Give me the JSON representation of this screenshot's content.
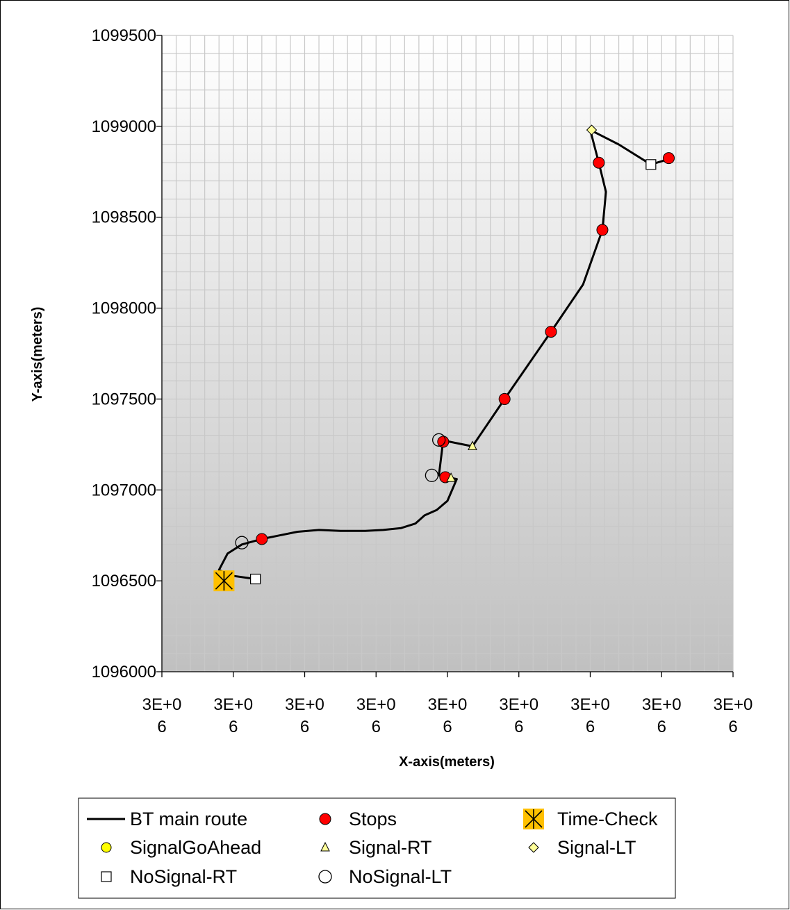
{
  "chart_data": {
    "type": "scatter",
    "title": "",
    "xlabel": "X-axis(meters)",
    "ylabel": "Y-axis(meters)",
    "ylim": [
      1096000,
      1099500
    ],
    "yticks": [
      "1096000",
      "1096500",
      "1097000",
      "1097500",
      "1098000",
      "1098500",
      "1099000",
      "1099500"
    ],
    "xtick_labels": [
      "3E+0\n6",
      "3E+0\n6",
      "3E+0\n6",
      "3E+0\n6",
      "3E+0\n6",
      "3E+0\n6",
      "3E+0\n6",
      "3E+0\n6",
      "3E+0\n6"
    ],
    "xlim": [
      0,
      800
    ],
    "xtick_step": 100,
    "grid": true,
    "legend_position": "bottom",
    "series": [
      {
        "name": "BT main route",
        "kind": "line",
        "points": [
          [
            131,
            1096510
          ],
          [
            95,
            1096530
          ],
          [
            80,
            1096560
          ],
          [
            92,
            1096650
          ],
          [
            112,
            1096700
          ],
          [
            140,
            1096730
          ],
          [
            165,
            1096750
          ],
          [
            190,
            1096770
          ],
          [
            220,
            1096780
          ],
          [
            250,
            1096775
          ],
          [
            285,
            1096775
          ],
          [
            310,
            1096780
          ],
          [
            335,
            1096790
          ],
          [
            355,
            1096815
          ],
          [
            368,
            1096860
          ],
          [
            385,
            1096890
          ],
          [
            400,
            1096940
          ],
          [
            413,
            1097060
          ],
          [
            399,
            1097070
          ],
          [
            388,
            1097080
          ],
          [
            394,
            1097270
          ],
          [
            403,
            1097265
          ],
          [
            435,
            1097240
          ],
          [
            480,
            1097500
          ],
          [
            545,
            1097870
          ],
          [
            590,
            1098130
          ],
          [
            617,
            1098430
          ],
          [
            622,
            1098640
          ],
          [
            612,
            1098800
          ],
          [
            600,
            1098980
          ],
          [
            640,
            1098900
          ],
          [
            685,
            1098790
          ],
          [
            710,
            1098820
          ]
        ]
      },
      {
        "name": "Stops",
        "kind": "marker",
        "marker": "circle-red",
        "points": [
          [
            140,
            1096730
          ],
          [
            397,
            1097070
          ],
          [
            394,
            1097265
          ],
          [
            480,
            1097500
          ],
          [
            545,
            1097870
          ],
          [
            617,
            1098430
          ],
          [
            612,
            1098800
          ],
          [
            710,
            1098825
          ]
        ]
      },
      {
        "name": "Time-Check",
        "kind": "marker",
        "marker": "asterisk-box",
        "points": [
          [
            87,
            1096500
          ]
        ]
      },
      {
        "name": "SignalGoAhead",
        "kind": "marker",
        "marker": "circle-yellow",
        "points": []
      },
      {
        "name": "Signal-RT",
        "kind": "marker",
        "marker": "triangle",
        "points": [
          [
            405,
            1097065
          ],
          [
            435,
            1097240
          ]
        ]
      },
      {
        "name": "Signal-LT",
        "kind": "marker",
        "marker": "diamond",
        "points": [
          [
            602,
            1098980
          ]
        ]
      },
      {
        "name": "NoSignal-RT",
        "kind": "marker",
        "marker": "square",
        "points": [
          [
            131,
            1096510
          ],
          [
            685,
            1098790
          ]
        ]
      },
      {
        "name": "NoSignal-LT",
        "kind": "marker",
        "marker": "circle-open",
        "points": [
          [
            112,
            1096710
          ],
          [
            378,
            1097080
          ],
          [
            388,
            1097275
          ]
        ]
      }
    ],
    "colors": {
      "line": "#000000",
      "stops": "#ff0000",
      "time_check": "#ffc000",
      "signal_go_ahead": "#ffff00",
      "signal_marker": "#ffff99",
      "plot_bg_top": "#ffffff",
      "plot_bg_bottom": "#c0c0c0",
      "grid": "#c8c8c8"
    }
  }
}
